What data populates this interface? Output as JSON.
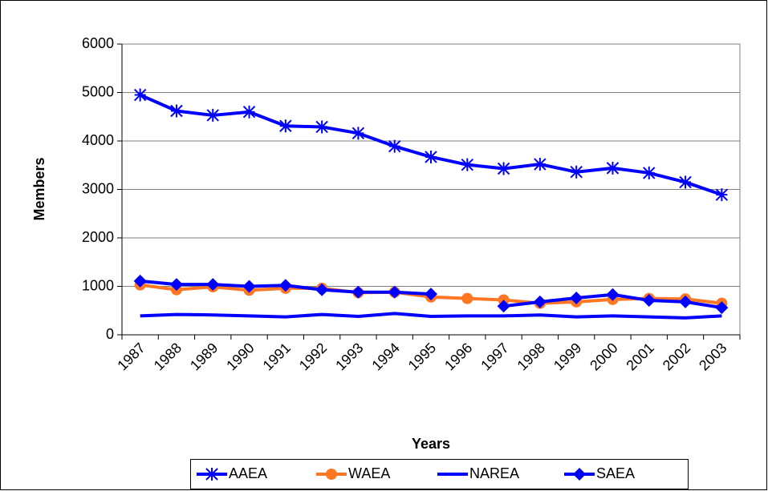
{
  "chart_data": {
    "type": "line",
    "x_label": "Years",
    "y_label": "Members",
    "categories": [
      "1987",
      "1988",
      "1989",
      "1990",
      "1991",
      "1992",
      "1993",
      "1994",
      "1995",
      "1996",
      "1997",
      "1998",
      "1999",
      "2000",
      "2001",
      "2002",
      "2003"
    ],
    "series": [
      {
        "name": "AAEA",
        "color": "#0000ff",
        "marker": "star",
        "values": [
          4950,
          4620,
          4530,
          4600,
          4310,
          4290,
          4160,
          3890,
          3670,
          3510,
          3430,
          3520,
          3360,
          3440,
          3340,
          3150,
          2890
        ]
      },
      {
        "name": "WAEA",
        "color": "#ff7722",
        "marker": "circle",
        "values": [
          1030,
          930,
          990,
          920,
          960,
          960,
          870,
          880,
          780,
          750,
          720,
          650,
          680,
          730,
          750,
          740,
          650
        ]
      },
      {
        "name": "NAREA",
        "color": "#0000ff",
        "marker": "none",
        "values": [
          390,
          420,
          410,
          390,
          370,
          420,
          380,
          440,
          380,
          390,
          390,
          410,
          370,
          390,
          370,
          350,
          390
        ]
      },
      {
        "name": "SAEA",
        "color": "#0000ff",
        "marker": "diamond",
        "values": [
          1110,
          1040,
          1040,
          1000,
          1020,
          930,
          880,
          880,
          840,
          null,
          590,
          680,
          760,
          830,
          710,
          680,
          560
        ]
      }
    ],
    "ylim": [
      0,
      6000
    ],
    "yticks": [
      0,
      1000,
      2000,
      3000,
      4000,
      5000,
      6000
    ],
    "grid": true
  }
}
